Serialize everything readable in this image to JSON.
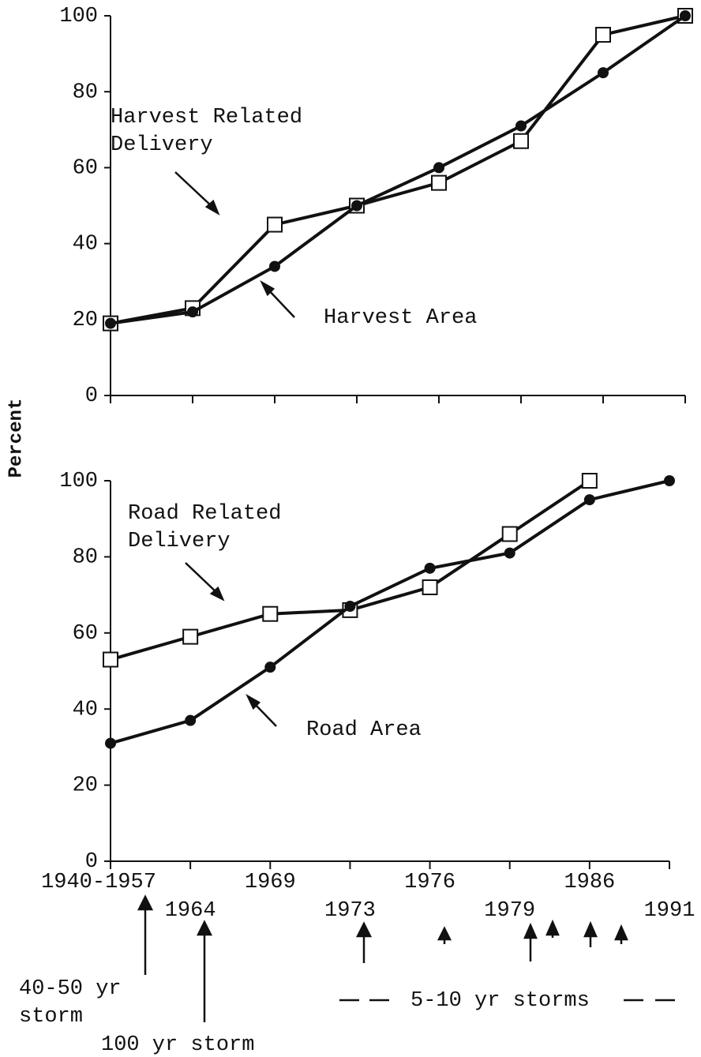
{
  "chart_data": [
    {
      "type": "line",
      "ylabel": "Percent",
      "categories": [
        null,
        null,
        null,
        null,
        null,
        null,
        null,
        null
      ],
      "series": [
        {
          "name": "Harvest Related Delivery",
          "color": "#111111",
          "marker": "square",
          "values": [
            19,
            23,
            45,
            50,
            56,
            67,
            95,
            100
          ]
        },
        {
          "name": "Harvest Area",
          "color": "#111111",
          "marker": "circle",
          "values": [
            19,
            22,
            34,
            50,
            60,
            71,
            85,
            100
          ]
        }
      ],
      "ylim": [
        0,
        100
      ],
      "yticks": [
        0,
        20,
        40,
        60,
        80,
        100
      ],
      "grid": false
    },
    {
      "type": "line",
      "categories": [
        "1940-1957",
        "1964",
        "1969",
        "1973",
        "1976",
        "1979",
        "1986",
        "1991"
      ],
      "series": [
        {
          "name": "Road Related Delivery",
          "color": "#111111",
          "marker": "square",
          "values": [
            53,
            59,
            65,
            66,
            72,
            86,
            100,
            null
          ]
        },
        {
          "name": "Road Area",
          "color": "#111111",
          "marker": "circle",
          "values": [
            31,
            37,
            51,
            67,
            77,
            81,
            95,
            100
          ]
        }
      ],
      "ylim": [
        0,
        100
      ],
      "yticks": [
        0,
        20,
        40,
        60,
        80,
        100
      ],
      "grid": false,
      "annotations": [
        "40-50 yr storm",
        "100 yr storm",
        "5-10 yr storms"
      ]
    }
  ]
}
